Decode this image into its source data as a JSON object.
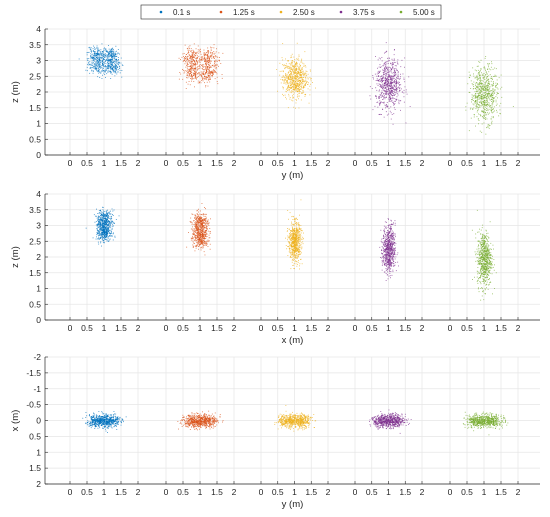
{
  "chart_data": {
    "type": "scatter",
    "legend": {
      "placement": "top-center",
      "entries": [
        {
          "label": "0.1 s",
          "color": "#0072BD"
        },
        {
          "label": "1.25 s",
          "color": "#D95319"
        },
        {
          "label": "2.50 s",
          "color": "#EDB120"
        },
        {
          "label": "3.75 s",
          "color": "#7E2F8E"
        },
        {
          "label": "5.00 s",
          "color": "#77AC30"
        }
      ]
    },
    "grid": true,
    "tick_labels": [
      "0",
      "0.5",
      "1",
      "1.5",
      "2"
    ],
    "panels": [
      {
        "id": "yz",
        "xlabel": "y (m)",
        "ylabel": "z (m)",
        "ylim": [
          0,
          4
        ],
        "y_reversed": false,
        "yticks": [
          "0",
          "0.5",
          "1",
          "1.5",
          "2",
          "2.5",
          "3",
          "3.5",
          "4"
        ],
        "clouds": [
          {
            "cx": 1.0,
            "cy": 3.0,
            "sx": 0.38,
            "sy": 0.35,
            "shape": "box4",
            "n": 650
          },
          {
            "cx": 1.0,
            "cy": 2.85,
            "sx": 0.42,
            "sy": 0.45,
            "shape": "box4",
            "n": 650
          },
          {
            "cx": 1.0,
            "cy": 2.45,
            "sx": 0.3,
            "sy": 0.5,
            "shape": "gauss",
            "n": 650
          },
          {
            "cx": 1.0,
            "cy": 2.25,
            "sx": 0.32,
            "sy": 0.65,
            "shape": "gauss",
            "n": 650
          },
          {
            "cx": 1.0,
            "cy": 1.95,
            "sx": 0.32,
            "sy": 0.7,
            "shape": "gauss",
            "n": 650
          }
        ]
      },
      {
        "id": "xz",
        "xlabel": "x (m)",
        "ylabel": "z (m)",
        "ylim": [
          0,
          4
        ],
        "y_reversed": false,
        "yticks": [
          "0",
          "0.5",
          "1",
          "1.5",
          "2",
          "2.5",
          "3",
          "3.5",
          "4"
        ],
        "clouds": [
          {
            "cx": 1.0,
            "cy": 3.0,
            "sx": 0.16,
            "sy": 0.4,
            "shape": "box2",
            "n": 650
          },
          {
            "cx": 1.0,
            "cy": 2.85,
            "sx": 0.17,
            "sy": 0.45,
            "shape": "box2",
            "n": 650
          },
          {
            "cx": 1.0,
            "cy": 2.5,
            "sx": 0.15,
            "sy": 0.5,
            "shape": "gauss",
            "n": 650
          },
          {
            "cx": 1.0,
            "cy": 2.25,
            "sx": 0.15,
            "sy": 0.62,
            "shape": "gauss",
            "n": 650
          },
          {
            "cx": 1.0,
            "cy": 1.95,
            "sx": 0.17,
            "sy": 0.7,
            "shape": "gauss",
            "n": 650
          }
        ]
      },
      {
        "id": "yx",
        "xlabel": "y (m)",
        "ylabel": "x (m)",
        "ylim": [
          -2,
          2
        ],
        "y_reversed": true,
        "yticks": [
          "-2",
          "-1.5",
          "-1",
          "-0.5",
          "0",
          "0.5",
          "1",
          "1.5",
          "2"
        ],
        "clouds": [
          {
            "cx": 1.0,
            "cy": 0.0,
            "sx": 0.4,
            "sy": 0.16,
            "shape": "boxh",
            "n": 650
          },
          {
            "cx": 1.0,
            "cy": 0.0,
            "sx": 0.42,
            "sy": 0.17,
            "shape": "boxh",
            "n": 650
          },
          {
            "cx": 1.0,
            "cy": 0.0,
            "sx": 0.4,
            "sy": 0.17,
            "shape": "boxh",
            "n": 650
          },
          {
            "cx": 1.0,
            "cy": 0.0,
            "sx": 0.42,
            "sy": 0.17,
            "shape": "boxh",
            "n": 650
          },
          {
            "cx": 1.0,
            "cy": 0.0,
            "sx": 0.42,
            "sy": 0.17,
            "shape": "boxh",
            "n": 650
          }
        ]
      }
    ]
  }
}
